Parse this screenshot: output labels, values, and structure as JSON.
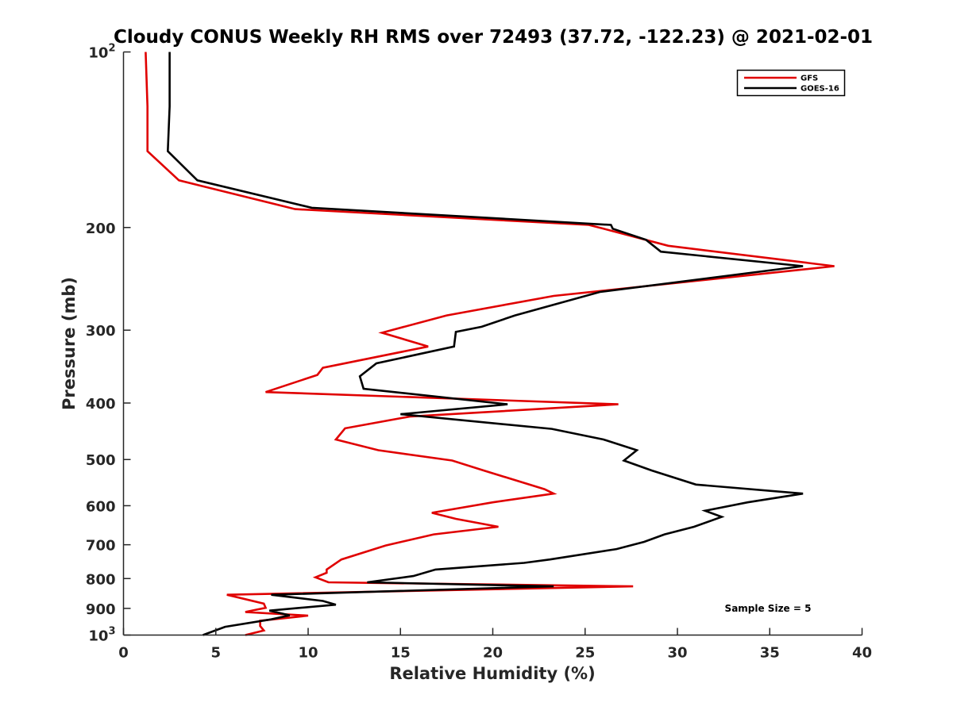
{
  "chart_data": {
    "type": "line",
    "title": "Cloudy CONUS Weekly RH RMS over 72493 (37.72, -122.23) @ 2021-02-01",
    "xlabel": "Relative Humidity (%)",
    "ylabel": "Pressure (mb)",
    "xlim": [
      0,
      40
    ],
    "ylim": [
      100,
      1000
    ],
    "y_scale": "log",
    "y_reversed": true,
    "x_ticks": [
      0,
      5,
      10,
      15,
      20,
      25,
      30,
      35,
      40
    ],
    "y_ticks": [
      {
        "value": 100,
        "label": "10",
        "exp": "2"
      },
      {
        "value": 200,
        "label": "200"
      },
      {
        "value": 300,
        "label": "300"
      },
      {
        "value": 400,
        "label": "400"
      },
      {
        "value": 500,
        "label": "500"
      },
      {
        "value": 600,
        "label": "600"
      },
      {
        "value": 700,
        "label": "700"
      },
      {
        "value": 800,
        "label": "800"
      },
      {
        "value": 900,
        "label": "900"
      },
      {
        "value": 1000,
        "label": "10",
        "exp": "3"
      }
    ],
    "grid": false,
    "legend_position": "top-right",
    "annotation": "Sample Size = 5",
    "series": [
      {
        "name": "GFS",
        "color": "#e00000",
        "points": [
          [
            1.2,
            100
          ],
          [
            1.3,
            124
          ],
          [
            1.3,
            148
          ],
          [
            3.0,
            166
          ],
          [
            9.3,
            186
          ],
          [
            25.2,
            198
          ],
          [
            26.0,
            201
          ],
          [
            29.5,
            215
          ],
          [
            38.5,
            233
          ],
          [
            23.3,
            262
          ],
          [
            17.5,
            283
          ],
          [
            14.0,
            303
          ],
          [
            16.5,
            320
          ],
          [
            10.8,
            348
          ],
          [
            10.5,
            358
          ],
          [
            7.7,
            383
          ],
          [
            26.8,
            402
          ],
          [
            15.5,
            422
          ],
          [
            12.0,
            442
          ],
          [
            11.5,
            462
          ],
          [
            13.8,
            482
          ],
          [
            17.8,
            502
          ],
          [
            19.5,
            522
          ],
          [
            22.8,
            562
          ],
          [
            23.3,
            572
          ],
          [
            20.0,
            592
          ],
          [
            16.7,
            617
          ],
          [
            18.0,
            632
          ],
          [
            20.3,
            652
          ],
          [
            16.8,
            672
          ],
          [
            14.2,
            702
          ],
          [
            11.8,
            742
          ],
          [
            11.0,
            772
          ],
          [
            11.0,
            782
          ],
          [
            10.4,
            796
          ],
          [
            11.1,
            812
          ],
          [
            27.6,
            825
          ],
          [
            5.6,
            853
          ],
          [
            7.6,
            883
          ],
          [
            7.7,
            898
          ],
          [
            6.6,
            913
          ],
          [
            10.0,
            926
          ],
          [
            7.4,
            945
          ],
          [
            7.4,
            965
          ],
          [
            7.6,
            982
          ],
          [
            6.6,
            1000
          ]
        ]
      },
      {
        "name": "GOES-16",
        "color": "#000000",
        "points": [
          [
            2.5,
            100
          ],
          [
            2.5,
            124
          ],
          [
            2.4,
            148
          ],
          [
            4.0,
            166
          ],
          [
            10.2,
            185
          ],
          [
            26.4,
            198
          ],
          [
            26.5,
            201
          ],
          [
            28.3,
            210
          ],
          [
            29.1,
            220
          ],
          [
            36.8,
            233
          ],
          [
            25.8,
            258
          ],
          [
            21.2,
            283
          ],
          [
            19.4,
            296
          ],
          [
            18.0,
            302
          ],
          [
            17.9,
            320
          ],
          [
            13.7,
            342
          ],
          [
            12.8,
            360
          ],
          [
            13.0,
            378
          ],
          [
            20.8,
            402
          ],
          [
            15.0,
            418
          ],
          [
            23.2,
            443
          ],
          [
            26.0,
            462
          ],
          [
            27.8,
            482
          ],
          [
            27.1,
            502
          ],
          [
            28.6,
            522
          ],
          [
            31.0,
            552
          ],
          [
            36.8,
            572
          ],
          [
            33.8,
            592
          ],
          [
            31.5,
            612
          ],
          [
            32.4,
            627
          ],
          [
            30.9,
            652
          ],
          [
            29.3,
            672
          ],
          [
            28.2,
            692
          ],
          [
            26.7,
            712
          ],
          [
            23.1,
            742
          ],
          [
            21.7,
            752
          ],
          [
            16.9,
            772
          ],
          [
            15.7,
            792
          ],
          [
            13.2,
            812
          ],
          [
            23.3,
            825
          ],
          [
            8.0,
            853
          ],
          [
            10.8,
            874
          ],
          [
            11.5,
            887
          ],
          [
            7.9,
            908
          ],
          [
            9.0,
            925
          ],
          [
            8.0,
            940
          ],
          [
            5.5,
            968
          ],
          [
            4.3,
            1000
          ]
        ]
      }
    ]
  }
}
